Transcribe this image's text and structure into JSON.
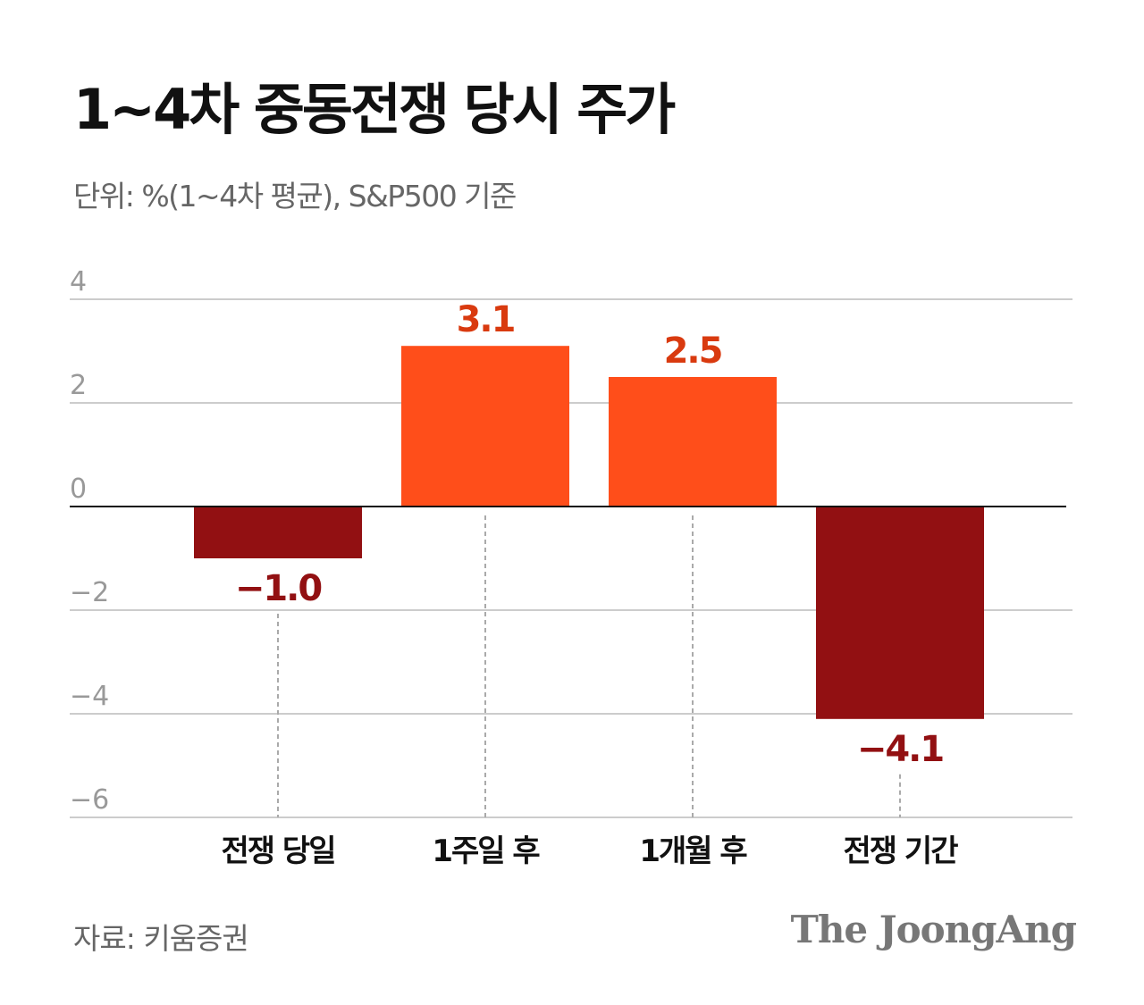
{
  "title": "1~4차 중동전쟁 당시 주가",
  "subtitle": "단위: %(1~4차 평균), S&P500 기준",
  "source": "자료: 키움증권",
  "logo": "The JoongAng",
  "colors": {
    "positive": "#FF4E1A",
    "negative": "#921012",
    "positive_label": "#D93A0F",
    "negative_label": "#921012",
    "grid": "#cccccc",
    "tick": "#999999"
  },
  "chart_data": {
    "type": "bar",
    "categories": [
      "전쟁 당일",
      "1주일 후",
      "1개월 후",
      "전쟁 기간"
    ],
    "values": [
      -1.0,
      3.1,
      2.5,
      -4.1
    ],
    "data_labels": [
      "−1.0",
      "3.1",
      "2.5",
      "−4.1"
    ],
    "ylim": [
      -6,
      4
    ],
    "yticks": [
      4,
      2,
      0,
      -2,
      -4,
      -6
    ],
    "ytick_labels": [
      "4",
      "2",
      "0",
      "−2",
      "−4",
      "−6"
    ],
    "grid": true,
    "title": "1~4차 중동전쟁 당시 주가",
    "xlabel": "",
    "ylabel": ""
  }
}
